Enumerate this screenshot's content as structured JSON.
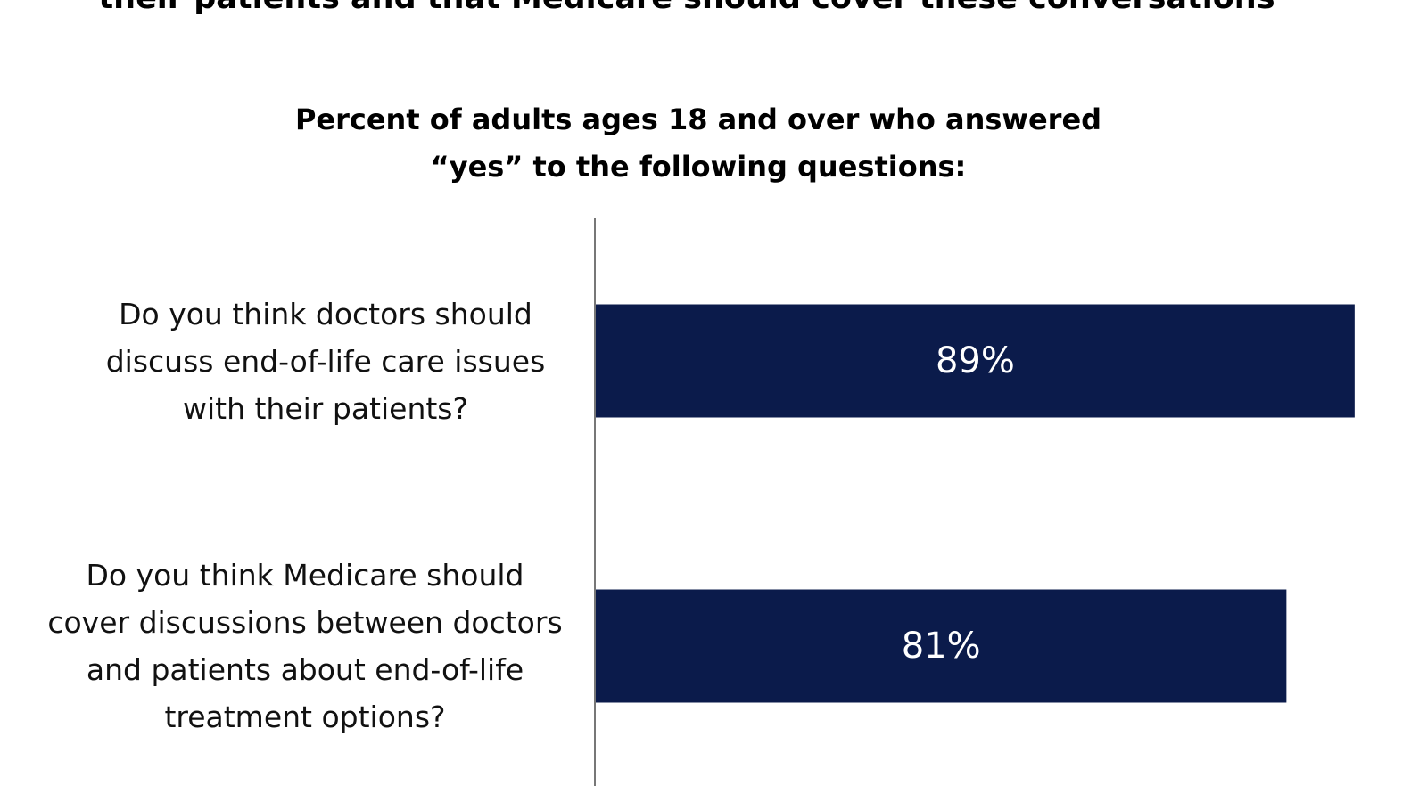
{
  "chart_data": {
    "type": "hbar",
    "title": "their patients and that Medicare should cover these conversations",
    "subtitle": "Percent of adults ages 18 and over who answered “yes” to the following questions:",
    "categories": [
      "Do you think doctors should discuss end-of-life care issues with their patients?",
      "Do you think Medicare should cover discussions between doctors and patients about end-of-life treatment options?"
    ],
    "values": [
      89,
      81
    ],
    "value_labels": [
      "89%",
      "81%"
    ],
    "color": "#0b1b4b"
  }
}
